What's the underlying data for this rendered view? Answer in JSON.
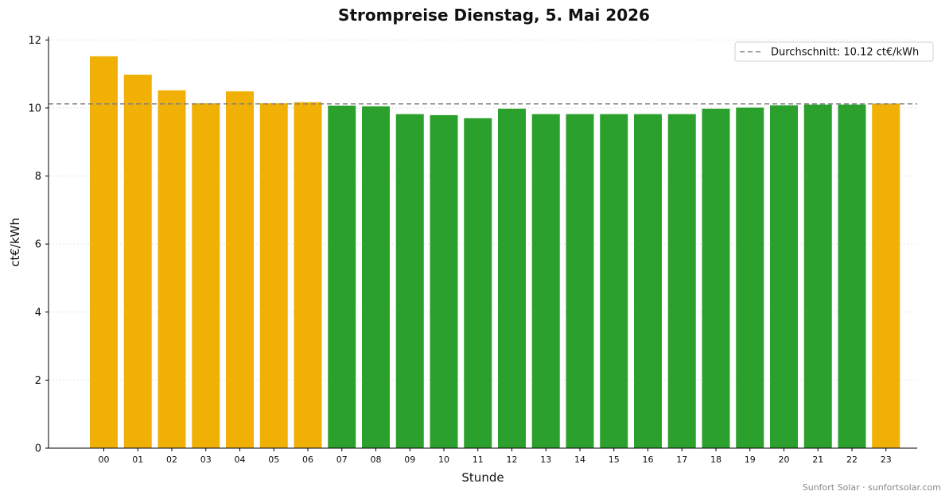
{
  "chart_data": {
    "type": "bar",
    "title": "Strompreise Dienstag, 5. Mai 2026",
    "xlabel": "Stunde",
    "ylabel": "ct€/kWh",
    "ylim": [
      0,
      12.1
    ],
    "yticks": [
      0,
      2,
      4,
      6,
      8,
      10,
      12
    ],
    "categories": [
      "00",
      "01",
      "02",
      "03",
      "04",
      "05",
      "06",
      "07",
      "08",
      "09",
      "10",
      "11",
      "12",
      "13",
      "14",
      "15",
      "16",
      "17",
      "18",
      "19",
      "20",
      "21",
      "22",
      "23"
    ],
    "values": [
      11.52,
      10.98,
      10.52,
      10.14,
      10.49,
      10.14,
      10.17,
      10.07,
      10.05,
      9.82,
      9.79,
      9.7,
      9.98,
      9.82,
      9.82,
      9.82,
      9.82,
      9.82,
      9.98,
      10.01,
      10.08,
      10.1,
      10.1,
      10.13
    ],
    "colors": {
      "above_average": "#f0b005",
      "below_average": "#2ca02c",
      "average_line": "#808080"
    },
    "average": 10.12,
    "legend": {
      "position": "top-right",
      "label": "Durchschnitt: 10.12 ct€/kWh"
    },
    "grid": "horizontal-dotted"
  },
  "footer": "Sunfort Solar · sunfortsolar.com"
}
